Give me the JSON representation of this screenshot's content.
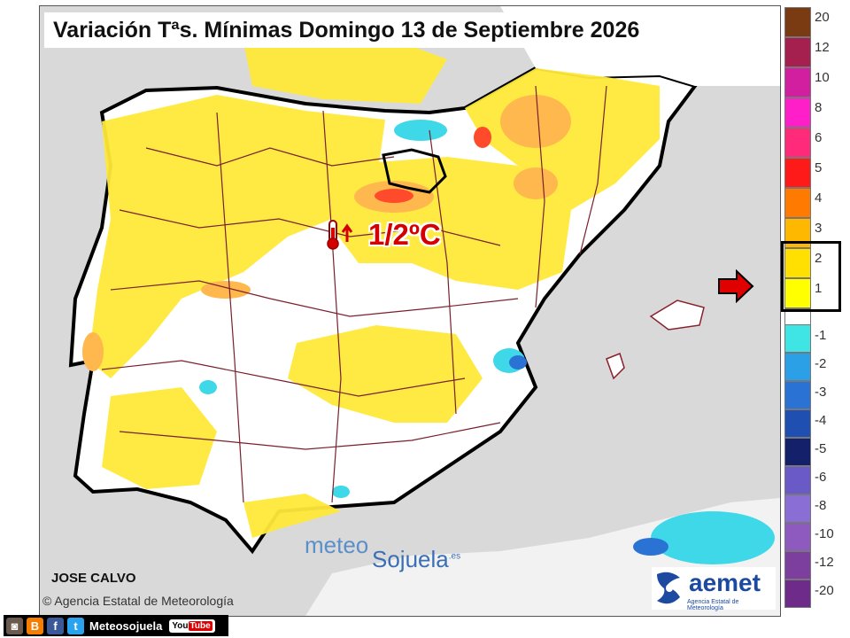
{
  "title": "Variación Tªs. Mínimas Domingo 13 de Septiembre 2026",
  "callout": {
    "text": "1/2ºC",
    "icon": "thermometer-up-icon"
  },
  "brand": {
    "part1": "meteo",
    "part2": "Sojuela",
    "suffix": ".es"
  },
  "author": "JOSE CALVO",
  "agency_line": "© Agencia Estatal de Meteorología",
  "logo": {
    "word": "aemet",
    "subtitle": "Agencia Estatal de Meteorología"
  },
  "legend": {
    "labels": [
      "20",
      "12",
      "10",
      "8",
      "6",
      "5",
      "4",
      "3",
      "2",
      "1",
      "-1",
      "-2",
      "-3",
      "-4",
      "-5",
      "-6",
      "-8",
      "-10",
      "-12",
      "-20"
    ],
    "positive_colors": [
      "#7a3a12",
      "#a6204f",
      "#d21fa0",
      "#ff1fc8",
      "#ff2b7a",
      "#ff1a1a",
      "#ff7a00",
      "#ffb800",
      "#ffe000",
      "#ffff00",
      "#ffffff"
    ],
    "negative_colors": [
      "#3fe5e5",
      "#2ba0e6",
      "#2a73d4",
      "#1f4fb0",
      "#15206a",
      "#6a5ac8",
      "#8b6dd6",
      "#8f5abf",
      "#7d3f9e",
      "#6e2b8a"
    ],
    "selected_range": "1-2"
  },
  "social": {
    "label": "Meteosojuela",
    "icons": [
      "instagram-icon",
      "blogger-icon",
      "facebook-icon",
      "twitter-icon",
      "youtube-icon"
    ],
    "youtube_you": "You",
    "youtube_tube": "Tube"
  },
  "colors": {
    "land": "#ffffff",
    "sea": "#d9d9d9",
    "anomaly_1_2": "#ffe93a",
    "anomaly_3": "#ffb84d",
    "anomaly_4": "#ff4a2b",
    "cold_anomaly": "#3fd8e8"
  }
}
